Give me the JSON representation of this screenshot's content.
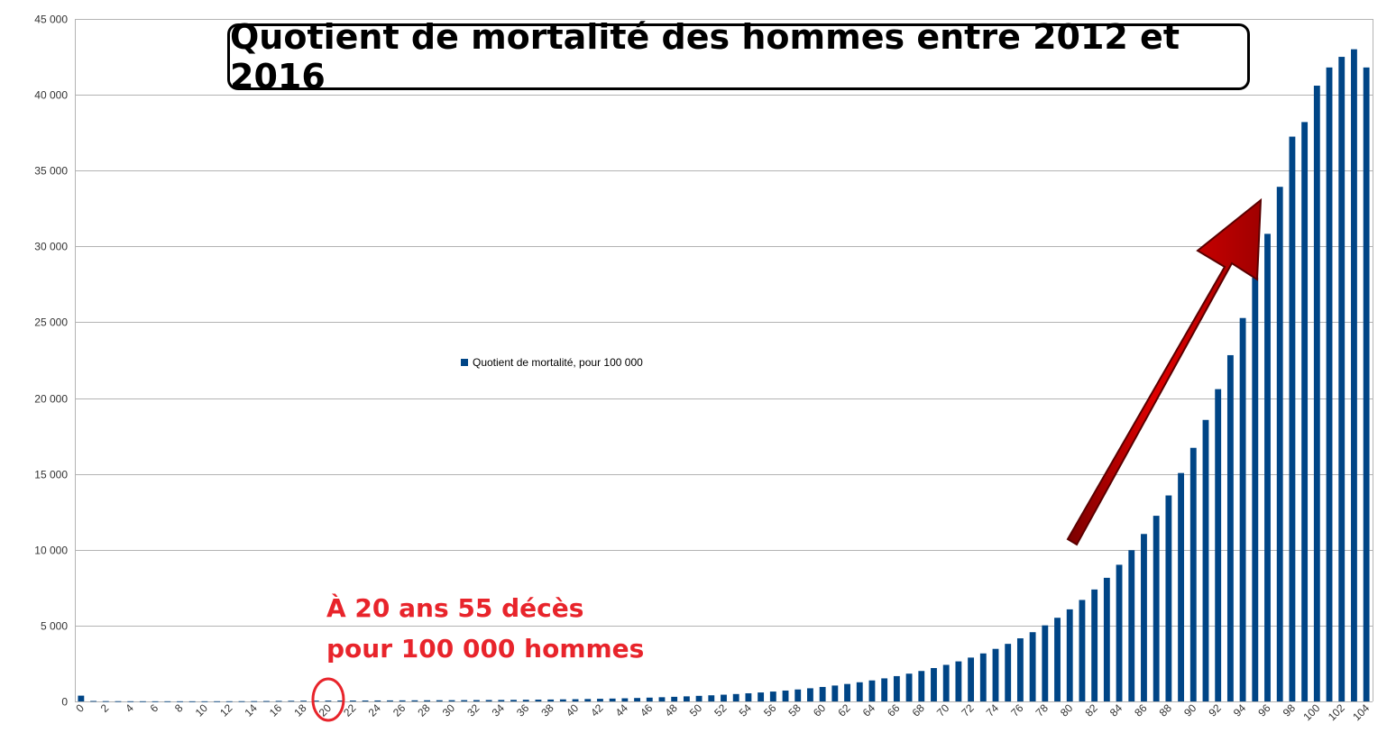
{
  "chart_data": {
    "type": "bar",
    "title": "Quotient de mortalité des hommes entre 2012 et 2016",
    "xlabel": "",
    "ylabel": "",
    "ylim": [
      0,
      45000
    ],
    "yticks": [
      0,
      5000,
      10000,
      15000,
      20000,
      25000,
      30000,
      35000,
      40000,
      45000
    ],
    "ytick_labels": [
      "0",
      "5 000",
      "10 000",
      "15 000",
      "20 000",
      "25 000",
      "30 000",
      "35 000",
      "40 000",
      "45 000"
    ],
    "grid": true,
    "legend_position": "center-left",
    "categories": [
      0,
      1,
      2,
      3,
      4,
      5,
      6,
      7,
      8,
      9,
      10,
      11,
      12,
      13,
      14,
      15,
      16,
      17,
      18,
      19,
      20,
      21,
      22,
      23,
      24,
      25,
      26,
      27,
      28,
      29,
      30,
      31,
      32,
      33,
      34,
      35,
      36,
      37,
      38,
      39,
      40,
      41,
      42,
      43,
      44,
      45,
      46,
      47,
      48,
      49,
      50,
      51,
      52,
      53,
      54,
      55,
      56,
      57,
      58,
      59,
      60,
      61,
      62,
      63,
      64,
      65,
      66,
      67,
      68,
      69,
      70,
      71,
      72,
      73,
      74,
      75,
      76,
      77,
      78,
      79,
      80,
      81,
      82,
      83,
      84,
      85,
      86,
      87,
      88,
      89,
      90,
      91,
      92,
      93,
      94,
      95,
      96,
      97,
      98,
      99,
      100,
      101,
      102,
      103,
      104
    ],
    "xtick_labels": [
      "0",
      "2",
      "4",
      "6",
      "8",
      "10",
      "12",
      "14",
      "16",
      "18",
      "20",
      "22",
      "24",
      "26",
      "28",
      "30",
      "32",
      "34",
      "36",
      "38",
      "40",
      "42",
      "44",
      "46",
      "48",
      "50",
      "52",
      "54",
      "56",
      "58",
      "60",
      "62",
      "64",
      "66",
      "68",
      "70",
      "72",
      "74",
      "76",
      "78",
      "80",
      "82",
      "84",
      "86",
      "88",
      "90",
      "92",
      "94",
      "96",
      "98",
      "100",
      "102",
      "104"
    ],
    "series": [
      {
        "name": "Quotient de mortalité, pour 100 000",
        "color": "#004586",
        "values": [
          380,
          30,
          20,
          15,
          12,
          11,
          10,
          10,
          9,
          9,
          10,
          11,
          12,
          15,
          20,
          27,
          35,
          42,
          49,
          53,
          55,
          57,
          58,
          60,
          62,
          65,
          68,
          71,
          74,
          77,
          80,
          84,
          88,
          92,
          96,
          101,
          108,
          116,
          125,
          135,
          146,
          158,
          172,
          188,
          206,
          226,
          250,
          276,
          304,
          334,
          367,
          403,
          443,
          487,
          536,
          590,
          650,
          716,
          788,
          867,
          953,
          1047,
          1150,
          1262,
          1385,
          1520,
          1668,
          1830,
          2007,
          2200,
          2410,
          2640,
          2890,
          3165,
          3465,
          3795,
          4160,
          4565,
          5015,
          5515,
          6070,
          6690,
          7380,
          8150,
          9010,
          9970,
          11040,
          12240,
          13580,
          15060,
          16720,
          18560,
          20590,
          22830,
          25280,
          27950,
          30830,
          33930,
          37240,
          38200,
          40600,
          41800,
          42500,
          43000,
          41800
        ]
      }
    ],
    "annotations": {
      "circle_at_category": 20,
      "text_line1": "À 20 ans 55 décès",
      "text_line2": "pour 100 000 hommes",
      "arrow_color": "#c00000"
    }
  }
}
